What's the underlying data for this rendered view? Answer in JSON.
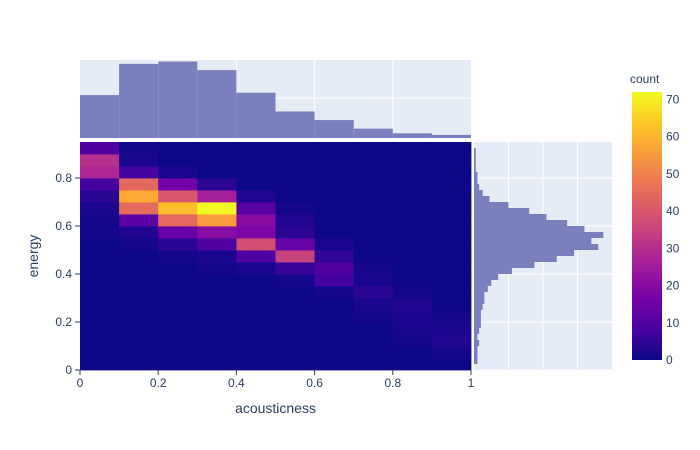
{
  "chart_data": {
    "type": "heatmap",
    "subtype": "density_heatmap_with_marginal_histograms",
    "title": "",
    "xlabel": "acousticness",
    "ylabel": "energy",
    "xlim": [
      0,
      1
    ],
    "ylim": [
      0,
      0.95
    ],
    "x_ticks": [
      "0",
      "0.2",
      "0.4",
      "0.6",
      "0.8",
      "1"
    ],
    "y_ticks": [
      "0",
      "0.2",
      "0.4",
      "0.6",
      "0.8"
    ],
    "grid": true,
    "colorscale": [
      "#0d0887",
      "#46039f",
      "#7201a8",
      "#9c179e",
      "#bd3786",
      "#d8576b",
      "#ed7953",
      "#fb9f3a",
      "#fdca26",
      "#f0f921"
    ],
    "colorbar": {
      "title": "count",
      "range": [
        0,
        72
      ],
      "ticks": [
        "0",
        "10",
        "20",
        "30",
        "40",
        "50",
        "60",
        "70"
      ]
    },
    "heatmap": {
      "x_bin_start": 0,
      "x_bin_size": 0.1,
      "y_bin_start": 0,
      "y_bin_size": 0.05,
      "z_note": "rows from energy 0.00-0.05 (index 0) up to 0.90-0.95 (index 18); columns acousticness 0.0-0.1 ... 0.9-1.0",
      "z": [
        [
          0,
          0,
          0,
          0,
          0,
          0,
          0,
          0,
          0,
          0
        ],
        [
          0,
          0,
          0,
          0,
          0,
          0,
          0,
          0,
          0,
          1
        ],
        [
          0,
          0,
          0,
          0,
          0,
          0,
          0,
          0,
          1,
          3
        ],
        [
          0,
          0,
          0,
          0,
          0,
          0,
          0,
          0,
          2,
          2
        ],
        [
          0,
          0,
          0,
          0,
          0,
          0,
          0,
          1,
          2,
          1
        ],
        [
          0,
          0,
          0,
          0,
          0,
          0,
          0,
          2,
          3,
          0
        ],
        [
          0,
          0,
          0,
          0,
          0,
          0,
          1,
          4,
          1,
          0
        ],
        [
          0,
          0,
          0,
          0,
          0,
          1,
          8,
          2,
          0,
          0
        ],
        [
          0,
          0,
          0,
          1,
          2,
          6,
          10,
          1,
          0,
          0
        ],
        [
          0,
          0,
          1,
          2,
          9,
          35,
          5,
          0,
          0,
          0
        ],
        [
          0,
          1,
          4,
          10,
          38,
          14,
          2,
          0,
          0,
          0
        ],
        [
          1,
          3,
          14,
          20,
          18,
          4,
          0,
          0,
          0,
          0
        ],
        [
          1,
          12,
          44,
          55,
          20,
          3,
          0,
          0,
          0,
          0
        ],
        [
          2,
          45,
          62,
          72,
          11,
          1,
          0,
          0,
          0,
          0
        ],
        [
          4,
          58,
          40,
          26,
          3,
          0,
          0,
          0,
          0,
          0
        ],
        [
          8,
          44,
          16,
          4,
          0,
          0,
          0,
          0,
          0,
          0
        ],
        [
          28,
          8,
          2,
          0,
          0,
          0,
          0,
          0,
          0,
          0
        ],
        [
          30,
          2,
          0,
          0,
          0,
          0,
          0,
          0,
          0,
          0
        ],
        [
          10,
          1,
          0,
          0,
          0,
          0,
          0,
          0,
          0,
          0
        ]
      ]
    },
    "marginal_x": {
      "type": "histogram",
      "bins_start": 0,
      "bin_size": 0.1,
      "counts": [
        55,
        95,
        98,
        87,
        58,
        34,
        23,
        12,
        6,
        4
      ]
    },
    "marginal_y": {
      "type": "histogram",
      "orientation": "horizontal",
      "bins_start": 0,
      "bin_size": 0.025,
      "counts": [
        0,
        2,
        2,
        2,
        3,
        2,
        3,
        4,
        4,
        4,
        5,
        6,
        6,
        8,
        10,
        14,
        22,
        35,
        48,
        58,
        72,
        68,
        75,
        64,
        54,
        42,
        32,
        20,
        9,
        5,
        3,
        2,
        2,
        1,
        1,
        1,
        1,
        0
      ]
    }
  }
}
